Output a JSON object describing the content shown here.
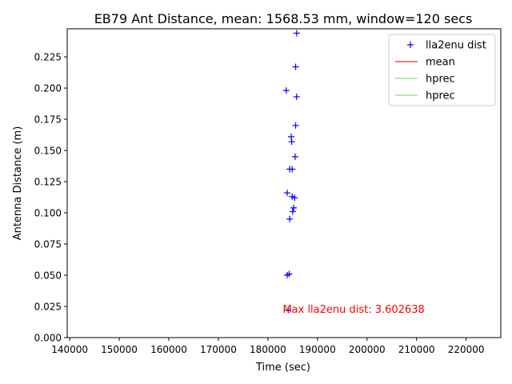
{
  "chart_data": {
    "type": "scatter",
    "title": "EB79 Ant Distance, mean: 1568.53 mm, window=120 secs",
    "xlabel": "Time (sec)",
    "ylabel": "Antenna Distance (m)",
    "xlim": [
      139500,
      227000
    ],
    "ylim": [
      0.0,
      0.2475
    ],
    "xticks": [
      140000,
      150000,
      160000,
      170000,
      180000,
      190000,
      200000,
      210000,
      220000
    ],
    "xtick_labels": [
      "140000",
      "150000",
      "160000",
      "170000",
      "180000",
      "190000",
      "200000",
      "210000",
      "220000"
    ],
    "yticks": [
      0.0,
      0.025,
      0.05,
      0.075,
      0.1,
      0.125,
      0.15,
      0.175,
      0.2,
      0.225
    ],
    "ytick_labels": [
      "0.000",
      "0.025",
      "0.050",
      "0.075",
      "0.100",
      "0.125",
      "0.150",
      "0.175",
      "0.200",
      "0.225"
    ],
    "grid": false,
    "legend_position": "top-right",
    "legend": [
      {
        "label": "lla2enu dist",
        "marker": "+",
        "color": "#0000ff"
      },
      {
        "label": "mean",
        "marker": "line",
        "color": "#c00000"
      },
      {
        "label": "hprec",
        "marker": "line",
        "color": "#66dd66"
      },
      {
        "label": "hprec",
        "marker": "line",
        "color": "#66dd66"
      }
    ],
    "series": [
      {
        "name": "lla2enu dist",
        "color": "#0000ff",
        "marker": "+",
        "points": [
          {
            "x": 185800,
            "y": 0.244
          },
          {
            "x": 185600,
            "y": 0.217
          },
          {
            "x": 183700,
            "y": 0.198
          },
          {
            "x": 185800,
            "y": 0.193
          },
          {
            "x": 185600,
            "y": 0.17
          },
          {
            "x": 184700,
            "y": 0.161
          },
          {
            "x": 184800,
            "y": 0.157
          },
          {
            "x": 185500,
            "y": 0.145
          },
          {
            "x": 184400,
            "y": 0.135
          },
          {
            "x": 184900,
            "y": 0.135
          },
          {
            "x": 183900,
            "y": 0.116
          },
          {
            "x": 184900,
            "y": 0.113
          },
          {
            "x": 185400,
            "y": 0.112
          },
          {
            "x": 185200,
            "y": 0.104
          },
          {
            "x": 185000,
            "y": 0.101
          },
          {
            "x": 184400,
            "y": 0.095
          },
          {
            "x": 184300,
            "y": 0.051
          },
          {
            "x": 183900,
            "y": 0.05
          },
          {
            "x": 184100,
            "y": 0.022
          }
        ]
      }
    ],
    "annotation": {
      "text": "Max lla2enu dist: 3.602638",
      "color": "#ff0000",
      "x": 183000,
      "y": 0.0225
    }
  }
}
